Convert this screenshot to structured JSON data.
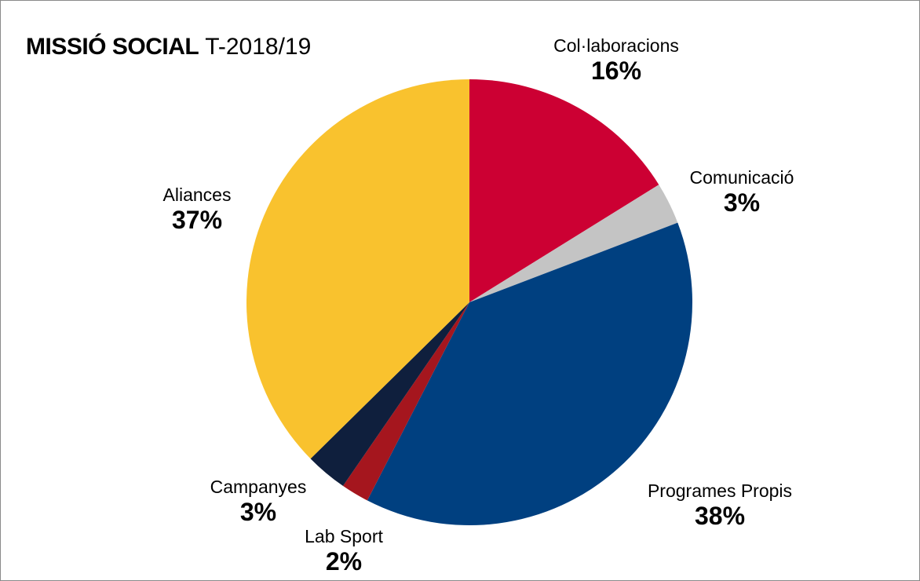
{
  "chart_data": {
    "type": "pie",
    "title": "MISSIÓ SOCIAL",
    "subtitle": "T-2018/19",
    "slices": [
      {
        "label": "Col·laboracions",
        "value": 16,
        "value_label": "16%",
        "color": "#cc0033"
      },
      {
        "label": "Comunicació",
        "value": 3,
        "value_label": "3%",
        "color": "#c4c4c4"
      },
      {
        "label": "Programes Propis",
        "value": 38,
        "value_label": "38%",
        "color": "#004080"
      },
      {
        "label": "Lab Sport",
        "value": 2,
        "value_label": "2%",
        "color": "#a5161e"
      },
      {
        "label": "Campanyes",
        "value": 3,
        "value_label": "3%",
        "color": "#0f1f3d"
      },
      {
        "label": "Aliances",
        "value": 37,
        "value_label": "37%",
        "color": "#f9c22e"
      }
    ],
    "start_angle": "12 o'clock",
    "direction": "clockwise",
    "legend": "none"
  }
}
